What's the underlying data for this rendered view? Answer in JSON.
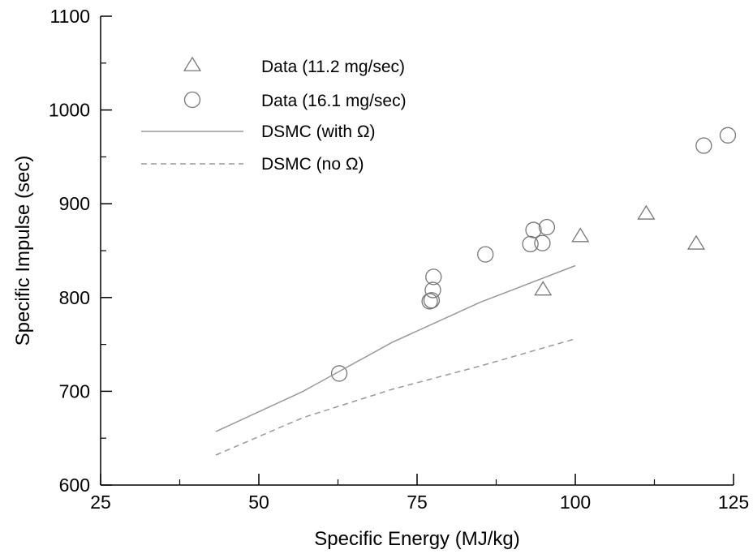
{
  "chart_data": {
    "type": "scatter",
    "title": "",
    "xlabel": "Specific Energy (MJ/kg)",
    "ylabel": "Specific Impulse (sec)",
    "xlim": [
      25,
      125
    ],
    "ylim": [
      600,
      1100
    ],
    "x_ticks": [
      25,
      50,
      75,
      100,
      125
    ],
    "x_tick_labels": [
      "25",
      "50",
      "75",
      "100",
      "125"
    ],
    "y_ticks": [
      600,
      700,
      800,
      900,
      1000,
      1100
    ],
    "y_tick_labels": [
      "600",
      "700",
      "800",
      "900",
      "1000",
      "1100"
    ],
    "grid": false,
    "legend_position": "top-left",
    "series": [
      {
        "name": "Data (11.2 mg/sec)",
        "marker": "triangle",
        "color": "#777777",
        "x": [
          94.9,
          100.8,
          111.2,
          119.1
        ],
        "y": [
          808,
          865,
          889,
          857
        ]
      },
      {
        "name": "Data (16.1 mg/sec)",
        "marker": "circle",
        "color": "#777777",
        "x": [
          62.7,
          77.0,
          77.3,
          77.5,
          77.6,
          85.8,
          92.9,
          93.4,
          94.8,
          95.5,
          120.3,
          124.1
        ],
        "y": [
          719,
          796,
          797,
          808,
          822,
          846,
          857,
          872,
          858,
          875,
          962,
          973
        ]
      },
      {
        "name": "DSMC (with Ω)",
        "line": "solid",
        "color": "#999999",
        "x": [
          43.2,
          57.0,
          71.0,
          85.0,
          100.0
        ],
        "y": [
          657,
          700,
          752,
          795,
          834
        ]
      },
      {
        "name": "DSMC (no Ω)",
        "line": "dashed",
        "color": "#999999",
        "x": [
          43.2,
          57.0,
          71.0,
          85.0,
          100.0
        ],
        "y": [
          632,
          672,
          702,
          727,
          756
        ]
      }
    ]
  }
}
